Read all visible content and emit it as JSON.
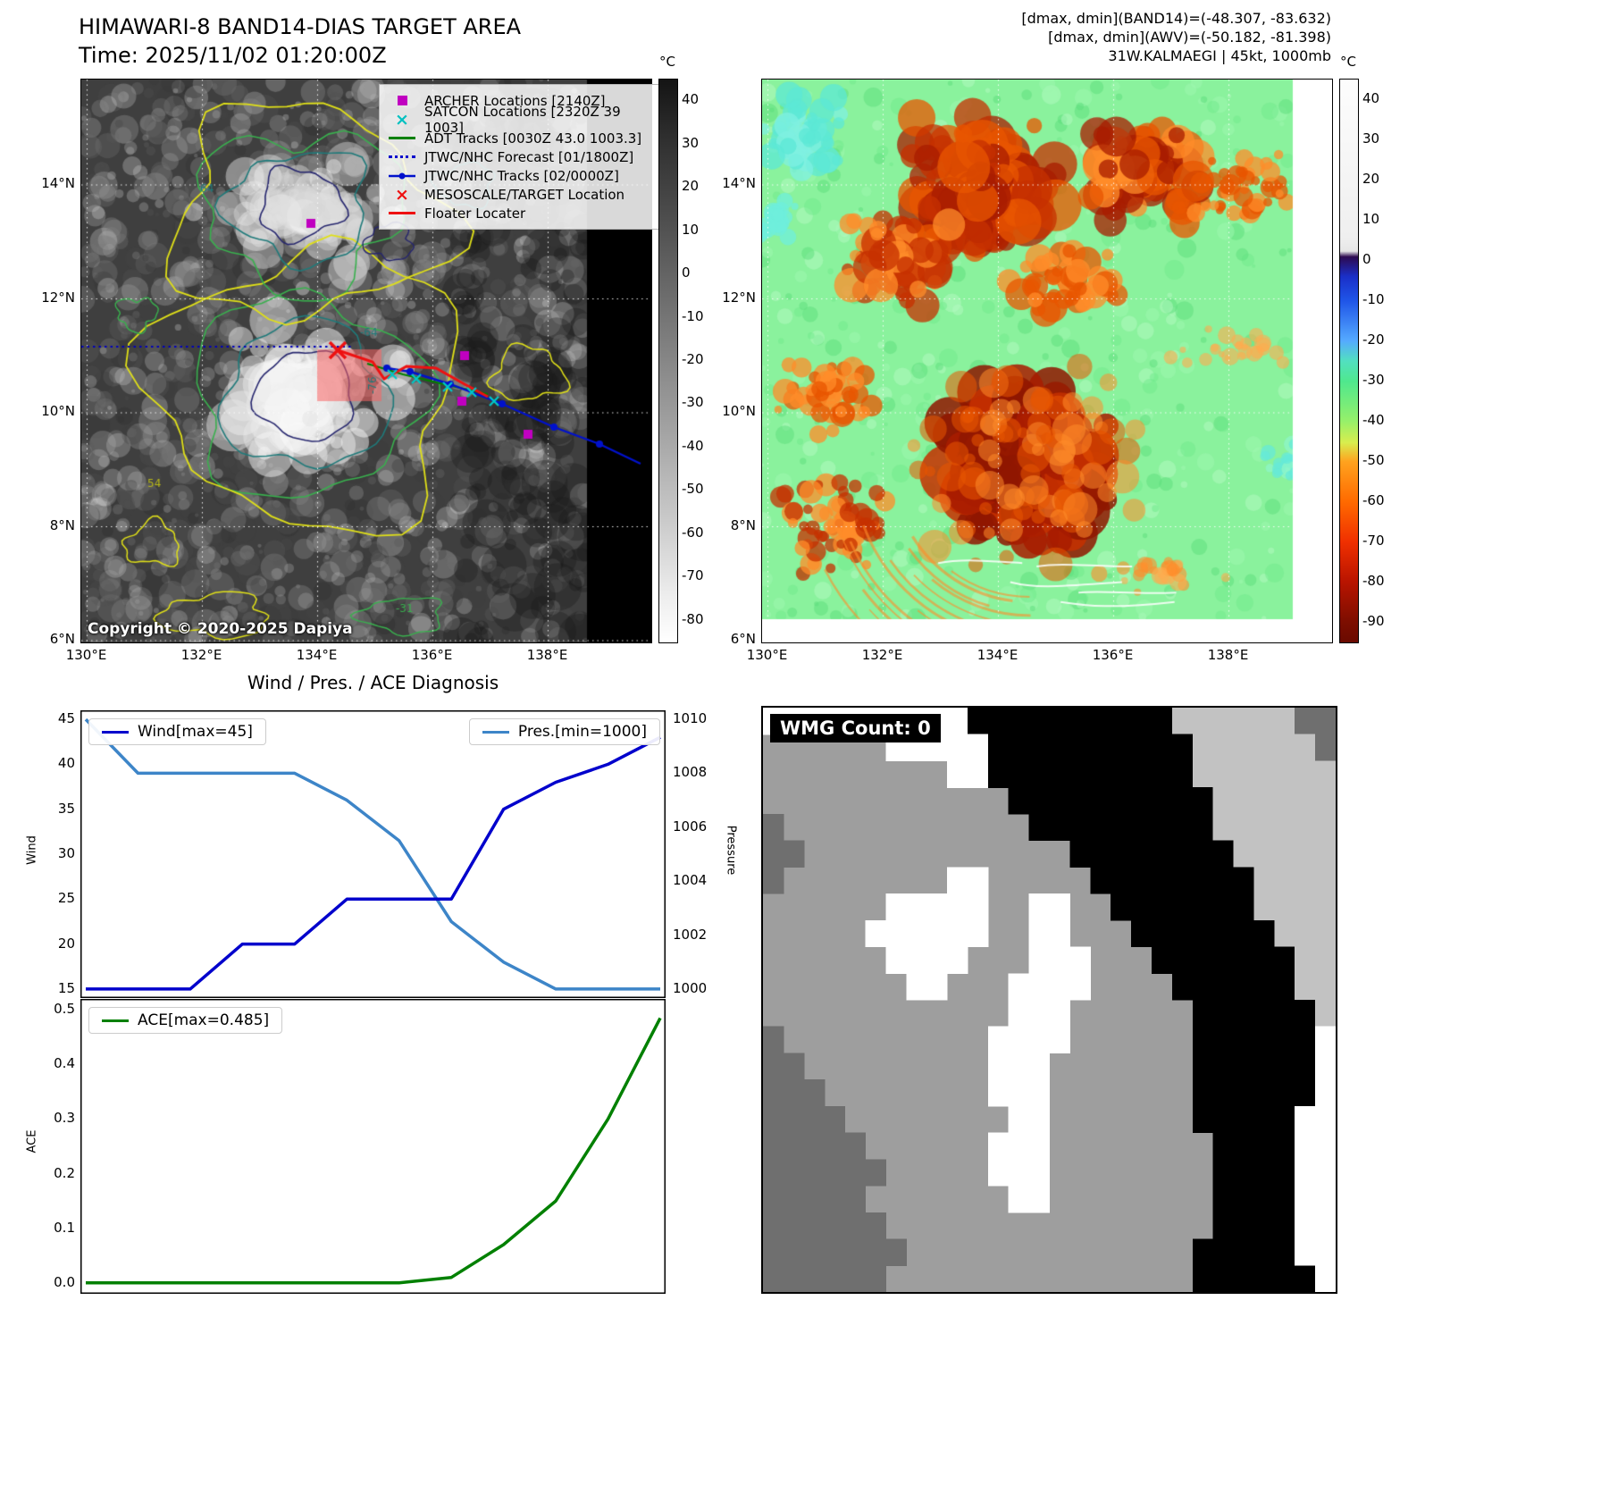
{
  "figure": {
    "band14": {
      "title": "HIMAWARI-8 BAND14-DIAS TARGET AREA",
      "subtitle": "Time: 2025/11/02 01:20:00Z",
      "copyright": "Copyright © 2020-2025 Dapiya",
      "colorbar_unit": "°C",
      "colorbar_ticks": [
        40,
        30,
        20,
        10,
        0,
        -10,
        -20,
        -30,
        -40,
        -50,
        -60,
        -70,
        -80
      ],
      "x_ticks": [
        "130°E",
        "132°E",
        "134°E",
        "136°E",
        "138°E"
      ],
      "y_ticks": [
        "6°N",
        "8°N",
        "10°N",
        "12°N",
        "14°N"
      ],
      "contour_labels": [
        {
          "text": "64",
          "color": "#1f7a7a"
        },
        {
          "text": "-64",
          "color": "#1f7a7a"
        },
        {
          "text": "-76",
          "color": "#1f7a7a"
        },
        {
          "text": "54",
          "color": "#b8b818"
        },
        {
          "text": "-31",
          "color": "#39b04e"
        }
      ],
      "legend": [
        {
          "label": "ARCHER Locations [2140Z]",
          "marker": "square",
          "color": "#c000c0"
        },
        {
          "label": "SATCON Locations [2320Z 39 1003]",
          "marker": "x",
          "color": "#00c0c0"
        },
        {
          "label": "ADT Tracks [0030Z 43.0 1003.3]",
          "marker": "line",
          "color": "#008000"
        },
        {
          "label": "JTWC/NHC Forecast [01/1800Z]",
          "marker": "dotted-line",
          "color": "#0000cc"
        },
        {
          "label": "JTWC/NHC Tracks [02/0000Z]",
          "marker": "line-marker",
          "color": "#0011cc"
        },
        {
          "label": "MESOSCALE/TARGET Location",
          "marker": "x",
          "color": "#ee1111"
        },
        {
          "label": "Floater Locater",
          "marker": "line",
          "color": "#ee1111"
        }
      ]
    },
    "awv": {
      "title_lines": [
        "[dmax, dmin](BAND14)=(-48.307, -83.632)",
        "[dmax, dmin](AWV)=(-50.182, -81.398)",
        "31W.KALMAEGI | 45kt, 1000mb"
      ],
      "colorbar_unit": "°C",
      "colorbar_ticks": [
        40,
        30,
        20,
        10,
        0,
        -10,
        -20,
        -30,
        -40,
        -50,
        -60,
        -70,
        -80,
        -90
      ],
      "x_ticks": [
        "130°E",
        "132°E",
        "134°E",
        "136°E",
        "138°E"
      ],
      "y_ticks": [
        "6°N",
        "8°N",
        "10°N",
        "12°N",
        "14°N"
      ]
    },
    "diagnosis": {
      "title": "Wind / Pres. / ACE Diagnosis",
      "wind_legend": "Wind[max=45]",
      "pres_legend": "Pres.[min=1000]",
      "ace_legend": "ACE[max=0.485]",
      "ylabel_wind": "Wind",
      "ylabel_pressure": "Pressure",
      "ylabel_ace": "ACE"
    },
    "wmg": {
      "label": "WMG Count: 0",
      "palette": {
        "g": "#9e9e9e",
        "d": "#6f6f6f",
        "w": "#ffffff",
        "k": "#000000",
        "l": "#c2c2c2"
      },
      "grid": [
        "wwwwwwwwwwkkkkkkkkkklllllldd",
        "ggggggwwwwwkkkkkkkkkklllllld",
        "gggggggggwwkkkkkkkkkklllllll",
        "ggggggggggggkkkkkkkkkkllllll",
        "dggggggggggggkkkkkkkkkllllll",
        "ddgggggggggggggkkkkkkkklllll",
        "dggggggggwwgggggkkkkkkkkllll",
        "ggggggwwwwwggwwggkkkkkkkllll",
        "gggggwwwwwwggwwgggkkkkkkklll",
        "ggggggwwwwgggwwwgggkkkkkkkll",
        "gggggggwwgggwwwwggggkkkkkkll",
        "ggggggggggggwwwggggggkkkkkkl",
        "dggggggggggwwwwggggggkkkkkkw",
        "ddgggggggggwwwgggggggkkkkkkw",
        "dddggggggggwwwgggggggkkkkkkw",
        "ddddggggggggwwgggggggkkkkkww",
        "dddddggggggwwwggggggggkkkkww",
        "ddddddgggggwwwggggggggkkkkww",
        "dddddgggggggwwggggggggkkkkww",
        "ddddddggggggggggggggggkkkkww",
        "dddddddggggggggggggggkkkkkww",
        "ddddddgggggggggggggggkkkkkkw"
      ]
    }
  },
  "chart_data": [
    {
      "type": "line",
      "title": "Wind / Pres. / ACE Diagnosis",
      "x": [
        0,
        1,
        2,
        3,
        4,
        5,
        6,
        7,
        8,
        9,
        10,
        11
      ],
      "series": [
        {
          "name": "Wind[max=45]",
          "axis": "left",
          "color": "#0000cc",
          "values": [
            15,
            15,
            15,
            20,
            20,
            25,
            25,
            25,
            35,
            38,
            40,
            43
          ]
        },
        {
          "name": "Pres.[min=1000]",
          "axis": "right",
          "color": "#3d85c8",
          "values": [
            1010,
            1008,
            1008,
            1008,
            1008,
            1007,
            1005.5,
            1002.5,
            1001,
            1000,
            1000,
            1000
          ]
        }
      ],
      "ylabel_left": "Wind",
      "yticks_left": [
        15,
        20,
        25,
        30,
        35,
        40,
        45
      ],
      "ylim_left": [
        14,
        46
      ],
      "ylabel_right": "Pressure",
      "yticks_right": [
        1000,
        1002,
        1004,
        1006,
        1008,
        1010
      ],
      "ylim_right": [
        1000,
        1010
      ],
      "legend_position": "upper-left and upper-right",
      "grid": false
    },
    {
      "type": "line",
      "x": [
        0,
        1,
        2,
        3,
        4,
        5,
        6,
        7,
        8,
        9,
        10,
        11
      ],
      "series": [
        {
          "name": "ACE[max=0.485]",
          "color": "#008000",
          "values": [
            0,
            0,
            0,
            0,
            0,
            0,
            0,
            0.01,
            0.07,
            0.15,
            0.3,
            0.485
          ]
        }
      ],
      "ylabel": "ACE",
      "yticks": [
        0.0,
        0.1,
        0.2,
        0.3,
        0.4,
        0.5
      ],
      "ylim": [
        -0.02,
        0.52
      ],
      "legend_position": "upper-left",
      "grid": false
    }
  ]
}
